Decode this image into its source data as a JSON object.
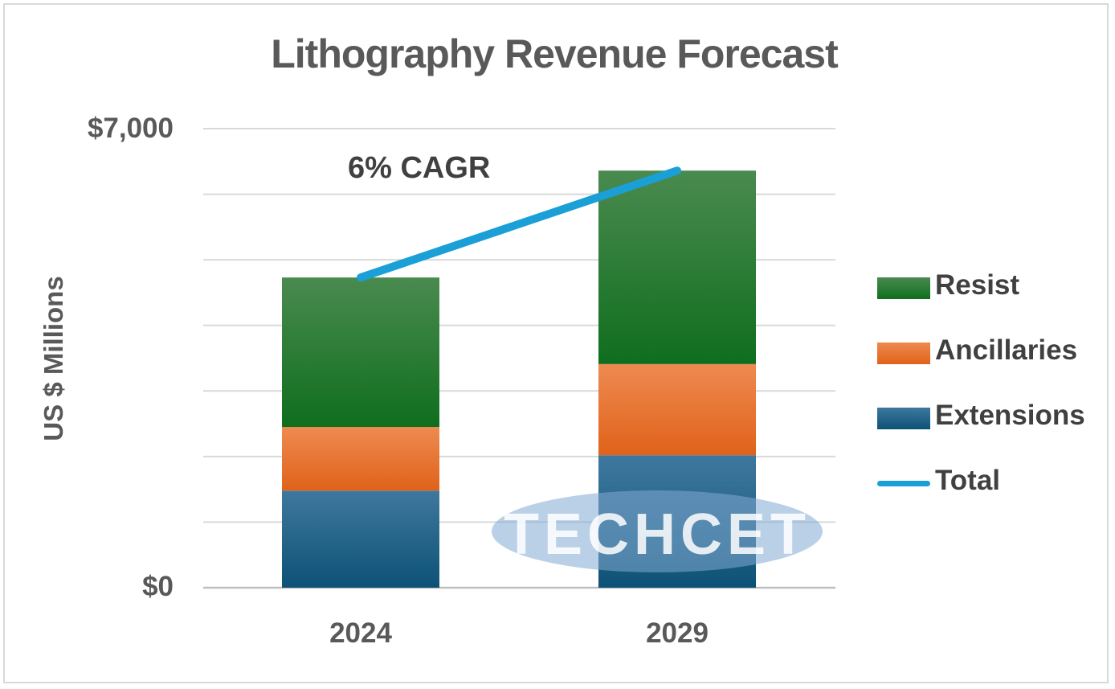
{
  "chart_data": {
    "type": "bar",
    "stacked": true,
    "title": "Lithography Revenue Forecast",
    "xlabel": "",
    "ylabel": "US $ Millions",
    "categories": [
      "2024",
      "2029"
    ],
    "ylim": [
      0,
      7000
    ],
    "yticks": [
      "$0",
      "$7,000"
    ],
    "grid": true,
    "legend_position": "right",
    "series": [
      {
        "name": "Extensions",
        "values": [
          1480,
          2020
        ],
        "color": "#1a5e86"
      },
      {
        "name": "Ancillaries",
        "values": [
          970,
          1390
        ],
        "color": "#e8702a"
      },
      {
        "name": "Resist",
        "values": [
          2280,
          2950
        ],
        "color": "#1e7a2a"
      }
    ],
    "line_series": {
      "name": "Total",
      "values": [
        4730,
        6360
      ],
      "color": "#1a9fd6"
    },
    "annotation": "6% CAGR",
    "watermark": "TECHCET"
  }
}
